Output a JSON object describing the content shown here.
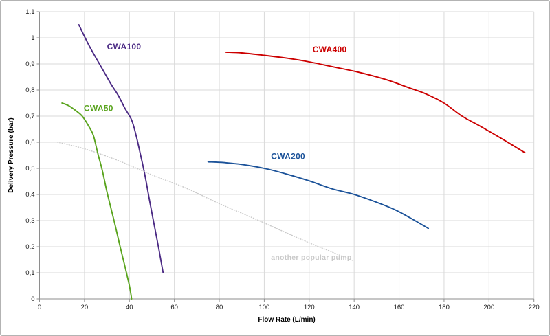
{
  "frame": {
    "background": "#ffffff",
    "border_color": "#b3b3b3"
  },
  "chart_data": {
    "type": "line",
    "title": "",
    "xlabel": "Flow Rate (L/min)",
    "ylabel": "Delivery Pressure (bar)",
    "xlim": [
      0,
      220
    ],
    "ylim": [
      0,
      1.1
    ],
    "x_ticks": [
      0,
      20,
      40,
      60,
      80,
      100,
      120,
      140,
      160,
      180,
      200,
      220
    ],
    "y_ticks": [
      0,
      0.1,
      0.2,
      0.3,
      0.4,
      0.5,
      0.6,
      0.7,
      0.8,
      0.9,
      1.0,
      1.1
    ],
    "decimal_separator": ",",
    "grid": true,
    "legend_position": "none",
    "colors": {
      "grid": "#d9d9d9",
      "axis": "#8e8e8e",
      "tick_label": "#1a1a1a",
      "axis_title": "#000000"
    },
    "series": [
      {
        "name": "CWA50",
        "color": "#5aa41e",
        "style": "solid",
        "label": {
          "text": "CWA50",
          "x": 19.7,
          "y": 0.72
        },
        "points": [
          [
            10,
            0.75
          ],
          [
            13,
            0.74
          ],
          [
            16,
            0.722
          ],
          [
            19,
            0.7
          ],
          [
            22,
            0.66
          ],
          [
            24,
            0.625
          ],
          [
            26,
            0.555
          ],
          [
            28,
            0.49
          ],
          [
            30,
            0.41
          ],
          [
            32,
            0.34
          ],
          [
            34,
            0.27
          ],
          [
            36,
            0.195
          ],
          [
            38,
            0.125
          ],
          [
            40,
            0.05
          ],
          [
            41,
            0
          ]
        ]
      },
      {
        "name": "CWA100",
        "color": "#4b2a84",
        "style": "solid",
        "label": {
          "text": "CWA100",
          "x": 30,
          "y": 0.955
        },
        "points": [
          [
            17.5,
            1.05
          ],
          [
            20,
            1.005
          ],
          [
            23,
            0.955
          ],
          [
            26,
            0.91
          ],
          [
            29,
            0.865
          ],
          [
            32,
            0.82
          ],
          [
            35,
            0.78
          ],
          [
            38,
            0.73
          ],
          [
            41,
            0.685
          ],
          [
            43,
            0.625
          ],
          [
            45,
            0.55
          ],
          [
            47,
            0.47
          ],
          [
            49,
            0.375
          ],
          [
            51,
            0.285
          ],
          [
            53,
            0.195
          ],
          [
            55,
            0.1
          ]
        ]
      },
      {
        "name": "CWA200",
        "color": "#1b5299",
        "style": "solid",
        "label": {
          "text": "CWA200",
          "x": 103,
          "y": 0.535
        },
        "points": [
          [
            75,
            0.525
          ],
          [
            82,
            0.522
          ],
          [
            90,
            0.515
          ],
          [
            100,
            0.5
          ],
          [
            110,
            0.478
          ],
          [
            120,
            0.452
          ],
          [
            130,
            0.422
          ],
          [
            140,
            0.4
          ],
          [
            150,
            0.37
          ],
          [
            158,
            0.342
          ],
          [
            165,
            0.31
          ],
          [
            173,
            0.27
          ]
        ]
      },
      {
        "name": "CWA400",
        "color": "#cc0000",
        "style": "solid",
        "label": {
          "text": "CWA400",
          "x": 121.5,
          "y": 0.945
        },
        "points": [
          [
            83,
            0.945
          ],
          [
            90,
            0.942
          ],
          [
            100,
            0.933
          ],
          [
            110,
            0.922
          ],
          [
            120,
            0.908
          ],
          [
            130,
            0.89
          ],
          [
            140,
            0.872
          ],
          [
            148,
            0.855
          ],
          [
            156,
            0.835
          ],
          [
            164,
            0.81
          ],
          [
            172,
            0.785
          ],
          [
            180,
            0.75
          ],
          [
            188,
            0.7
          ],
          [
            196,
            0.662
          ],
          [
            206,
            0.612
          ],
          [
            216,
            0.56
          ]
        ]
      },
      {
        "name": "another popular pump",
        "color": "#c9c9c9",
        "style": "dotted",
        "label": {
          "text": "another popular pump",
          "x": 103,
          "y": 0.15
        },
        "points": [
          [
            8,
            0.6
          ],
          [
            20,
            0.575
          ],
          [
            35,
            0.53
          ],
          [
            50,
            0.475
          ],
          [
            65,
            0.425
          ],
          [
            80,
            0.365
          ],
          [
            95,
            0.31
          ],
          [
            108,
            0.26
          ],
          [
            120,
            0.215
          ],
          [
            130,
            0.18
          ],
          [
            140,
            0.145
          ]
        ]
      }
    ]
  }
}
